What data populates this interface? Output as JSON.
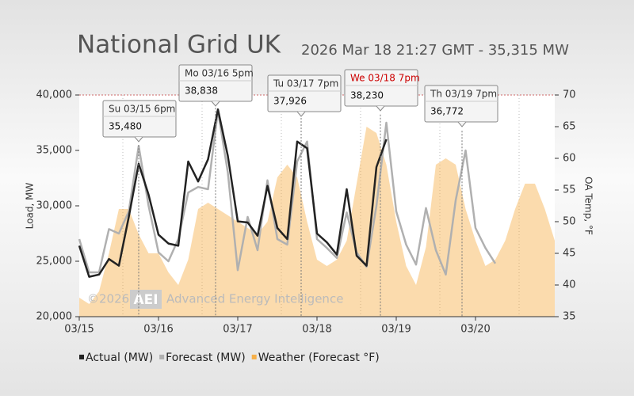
{
  "chart_data": {
    "type": "line",
    "title": "National Grid UK",
    "subtitle": "2026 Mar 18 21:27 GMT - 35,315 MW",
    "ylabel": "Load, MW",
    "y2label": "OA Temp, °F",
    "watermark_prefix": "©2026",
    "watermark_logo": "AEI",
    "watermark_text": "Advanced Energy Intelligence",
    "categories": [
      "03/15",
      null,
      null,
      null,
      null,
      null,
      null,
      null,
      "03/16",
      null,
      null,
      null,
      null,
      null,
      null,
      null,
      "03/17",
      null,
      null,
      null,
      null,
      null,
      null,
      null,
      "03/18",
      null,
      null,
      null,
      null,
      null,
      null,
      null,
      "03/19",
      null,
      null,
      null,
      null,
      null,
      null,
      null,
      "03/20",
      null,
      null,
      null,
      null,
      null,
      null,
      null,
      null
    ],
    "ylim": [
      20000,
      40000
    ],
    "yticks": [
      {
        "value": 20000,
        "label": "20,000"
      },
      {
        "value": 25000,
        "label": "25,000"
      },
      {
        "value": 30000,
        "label": "30,000"
      },
      {
        "value": 35000,
        "label": "35,000"
      },
      {
        "value": 40000,
        "label": "40,000"
      }
    ],
    "y2lim": [
      35,
      70
    ],
    "y2ticks": [
      35,
      40,
      45,
      50,
      55,
      60,
      65,
      70
    ],
    "series": [
      {
        "name": "Actual (MW)",
        "color": "#222222",
        "type": "line",
        "values": [
          26400,
          23600,
          23800,
          25200,
          24600,
          29000,
          33800,
          31000,
          27400,
          26600,
          26400,
          34000,
          32200,
          34200,
          38700,
          34500,
          28600,
          28500,
          27300,
          31800,
          28000,
          27000,
          35800,
          35200,
          27500,
          26700,
          25600,
          31500,
          25500,
          24600,
          33500,
          36000,
          null,
          null,
          null,
          null,
          null,
          null,
          null,
          null,
          null,
          null,
          null,
          null,
          null,
          null,
          null,
          null,
          null
        ]
      },
      {
        "name": "Forecast (MW)",
        "color": "#b0b0b0",
        "type": "line",
        "values": [
          27000,
          24000,
          24000,
          27900,
          27500,
          29500,
          35400,
          30000,
          25800,
          25000,
          27000,
          31200,
          31700,
          31500,
          38600,
          33000,
          24200,
          29000,
          26000,
          32300,
          27000,
          26500,
          34000,
          35800,
          27000,
          26200,
          25300,
          29400,
          25800,
          24500,
          30000,
          37500,
          29500,
          26500,
          24700,
          29800,
          26000,
          23800,
          30500,
          35000,
          28000,
          26200,
          24800,
          null,
          null,
          null,
          null,
          null,
          null
        ]
      },
      {
        "name": "Weather (Forecast °F)",
        "color": "#f6b04a",
        "type": "area",
        "axis": "y2",
        "values": [
          38,
          37,
          39,
          45,
          52,
          52,
          48,
          45,
          45,
          42,
          40,
          44,
          52,
          53,
          52,
          51,
          50,
          49,
          48,
          50,
          57,
          59,
          57,
          50,
          44,
          43,
          44,
          47,
          56,
          65,
          64,
          59,
          50,
          43,
          40,
          46,
          59,
          60,
          59,
          52,
          47,
          43,
          44,
          47,
          52,
          56,
          56,
          52,
          47
        ]
      }
    ],
    "annotations": [
      {
        "label": "Su 03/15 6pm",
        "value": 35480,
        "value_label": "35,480"
      },
      {
        "label": "Mo 03/16 5pm",
        "value": 38838,
        "value_label": "38,838"
      },
      {
        "label": "Tu 03/17 7pm",
        "value": 37926,
        "value_label": "37,926"
      },
      {
        "label": "We 03/18 7pm",
        "value": 38230,
        "value_label": "38,230",
        "color": "#cc0000"
      },
      {
        "label": "Th 03/19 7pm",
        "value": 36772,
        "value_label": "36,772"
      }
    ]
  }
}
